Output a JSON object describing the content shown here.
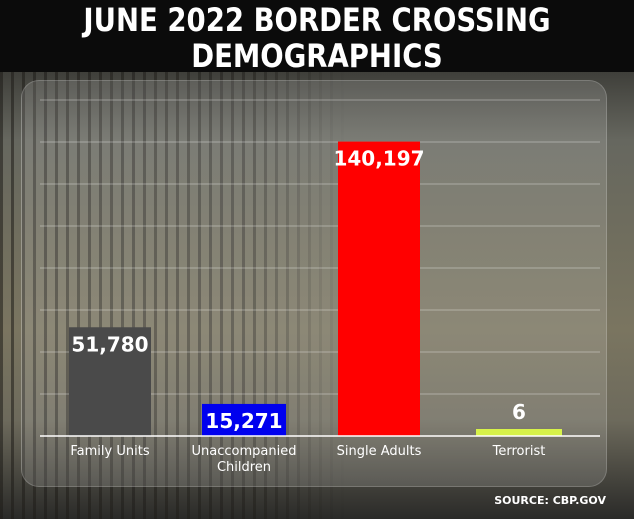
{
  "title": "JUNE 2022 BORDER CROSSING DEMOGRAPHICS",
  "source": "SOURCE: CBP.GOV",
  "chart_data": {
    "type": "bar",
    "title": "JUNE 2022 BORDER CROSSING DEMOGRAPHICS",
    "categories": [
      "Family Units",
      "Unaccompanied Children",
      "Single Adults",
      "Terrorist"
    ],
    "category_lines": [
      [
        "Family Units"
      ],
      [
        "Unaccompanied",
        "Children"
      ],
      [
        "Single Adults"
      ],
      [
        "Terrorist"
      ]
    ],
    "values": [
      51780,
      15271,
      140197,
      6
    ],
    "data_labels": [
      "51,780",
      "15,271",
      "140,197",
      "6"
    ],
    "bar_colors": [
      "#4a4a4a",
      "#0000ee",
      "#ff0000",
      "#d7f24a"
    ],
    "label_colors": [
      "#ffffff",
      "#ffffff",
      "#ffffff",
      "#ffffff"
    ],
    "ylim": [
      0,
      160000
    ],
    "grid": true,
    "legend": "none",
    "xlabel": "",
    "ylabel": ""
  }
}
